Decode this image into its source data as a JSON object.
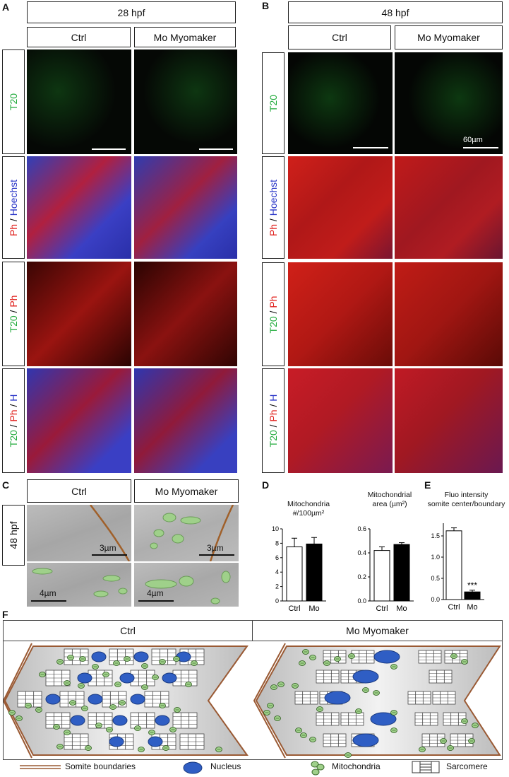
{
  "panels": {
    "A": "A",
    "B": "B",
    "C": "C",
    "D": "D",
    "E": "E",
    "F": "F"
  },
  "timepoints": {
    "a": "28 hpf",
    "b": "48 hpf",
    "c": "48 hpf"
  },
  "conditions": {
    "ctrl": "Ctrl",
    "mo": "Mo Myomaker"
  },
  "row_labels": {
    "t20": "T20",
    "ph_hoechst": {
      "a": "Ph",
      "sep": " / ",
      "b": "Hoechst"
    },
    "t20_ph": {
      "a": "T20",
      "sep": " / ",
      "b": "Ph"
    },
    "t20_ph_h": {
      "a": "T20",
      "sep": " / ",
      "b": "Ph",
      "sep2": " / ",
      "c": "H"
    }
  },
  "scale_labels": {
    "b_scale": "60µm",
    "c1": "3µm",
    "c2": "3µm",
    "c3": "4µm",
    "c4": "4µm"
  },
  "colors": {
    "green": "#1faa3a",
    "red": "#e0201c",
    "blue": "#2a36c8"
  },
  "chart_data": [
    {
      "type": "bar",
      "title": "Mitochondria #/100µm²",
      "categories": [
        "Ctrl",
        "Mo"
      ],
      "values": [
        7.5,
        7.9
      ],
      "errors": [
        1.2,
        0.9
      ],
      "fills": [
        "#ffffff",
        "#000000"
      ],
      "ylim": [
        0,
        10
      ],
      "yticks": [
        0,
        2,
        4,
        6,
        8,
        10
      ]
    },
    {
      "type": "bar",
      "title": "Mitochondrial area (µm²)",
      "categories": [
        "Ctrl",
        "Mo"
      ],
      "values": [
        0.42,
        0.47
      ],
      "errors": [
        0.03,
        0.015
      ],
      "fills": [
        "#ffffff",
        "#000000"
      ],
      "ylim": [
        0,
        0.6
      ],
      "yticks": [
        0.0,
        0.2,
        0.4,
        0.6
      ]
    },
    {
      "type": "bar",
      "title": "Fluo intensity somite center/boundary",
      "categories": [
        "Ctrl",
        "Mo"
      ],
      "values": [
        1.62,
        0.18
      ],
      "errors": [
        0.07,
        0.04
      ],
      "fills": [
        "#ffffff",
        "#000000"
      ],
      "ylim": [
        0,
        1.8
      ],
      "yticks": [
        0.0,
        0.5,
        1.0,
        1.5
      ],
      "annotation": "***"
    }
  ],
  "chart_titles": {
    "d1a": "Mitochondria",
    "d1b": "#/100µm²",
    "d2a": "Mitochondrial",
    "d2b": "area (µm²)",
    "e1": "Fluo intensity",
    "e2": "somite center/boundary"
  },
  "legend": {
    "boundaries": "Somite boundaries",
    "nucleus": "Nucleus",
    "mito": "Mitochondria",
    "sarcomere": "Sarcomere"
  }
}
